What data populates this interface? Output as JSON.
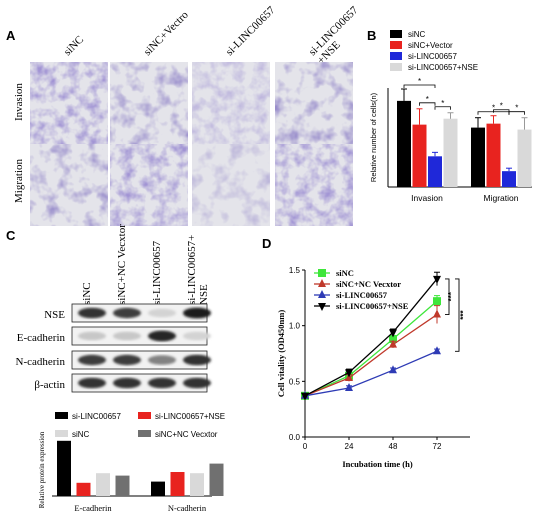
{
  "panel_labels": {
    "A": "A",
    "B": "B",
    "C": "C",
    "D": "D"
  },
  "panel_a": {
    "columns": [
      "siNC",
      "siNC+Vectro",
      "si-LINC00657",
      "si-LINC00657\n+NSE"
    ],
    "rows": [
      "Invasion",
      "Migration"
    ]
  },
  "panel_c": {
    "lanes": [
      "siNC",
      "siNC+NC Vecxtor",
      "si-LINC00657",
      "si-LINC00657+\nNSE"
    ],
    "blots": [
      "NSE",
      "E-cadherin",
      "N-cadherin",
      "β-actin"
    ],
    "band_intensity": {
      "NSE": [
        0.85,
        0.8,
        0.15,
        0.95
      ],
      "E-cadherin": [
        0.2,
        0.2,
        0.9,
        0.15
      ],
      "N-cadherin": [
        0.8,
        0.8,
        0.5,
        0.85
      ],
      "β-actin": [
        0.85,
        0.85,
        0.85,
        0.85
      ]
    }
  },
  "chart_data": [
    {
      "id": "B",
      "type": "bar",
      "categories": [
        "Invasion",
        "Migration"
      ],
      "ylabel": "Relative number of cells(n)",
      "ylim": [
        0,
        100
      ],
      "series": [
        {
          "name": "siNC",
          "values": [
            87,
            60
          ],
          "errors": [
            12,
            10
          ],
          "color": "#000000"
        },
        {
          "name": "siNC+Vector",
          "values": [
            63,
            64
          ],
          "errors": [
            16,
            8
          ],
          "color": "#e8231f"
        },
        {
          "name": "si-LINC00657",
          "values": [
            31,
            16
          ],
          "errors": [
            4,
            3
          ],
          "color": "#1f28d9"
        },
        {
          "name": "si-LINC00657+NSE",
          "values": [
            69,
            58
          ],
          "errors": [
            6,
            12
          ],
          "color": "#d9d9d9"
        }
      ],
      "significance_mark": "*",
      "legend_position": "top-right"
    },
    {
      "id": "C-bottom",
      "type": "bar",
      "categories": [
        "E-cadherin",
        "N-cadherin"
      ],
      "ylabel": "Relative protein expression",
      "series": [
        {
          "name": "si-LINC00657",
          "values": [
            2.3,
            0.6
          ],
          "color": "#000000"
        },
        {
          "name": "si-LINC00657+NSE",
          "values": [
            0.55,
            1.0
          ],
          "color": "#e8231f"
        },
        {
          "name": "siNC",
          "values": [
            0.95,
            0.95
          ],
          "color": "#d9d9d9"
        },
        {
          "name": "siNC+NC Vecxtor",
          "values": [
            0.85,
            1.35
          ],
          "color": "#707070"
        }
      ],
      "ylim": [
        0,
        2.5
      ],
      "legend_position": "top"
    },
    {
      "id": "D",
      "type": "line",
      "x": [
        0,
        24,
        48,
        72
      ],
      "xlabel": "Incubation time (h)",
      "ylabel": "Cell vitality (OD450nm)",
      "xticks": [
        "0",
        "24",
        "48",
        "72"
      ],
      "yticks": [
        "0.0",
        "0.5",
        "1.0",
        "1.5"
      ],
      "ylim": [
        0,
        1.5
      ],
      "series": [
        {
          "name": "siNC",
          "values": [
            0.37,
            0.55,
            0.88,
            1.22
          ],
          "errors": [
            0.02,
            0.03,
            0.03,
            0.05
          ],
          "color": "#3ee63a",
          "marker": "square"
        },
        {
          "name": "siNC+NC Vecxtor",
          "values": [
            0.37,
            0.53,
            0.83,
            1.1
          ],
          "errors": [
            0.02,
            0.03,
            0.03,
            0.08
          ],
          "color": "#c0392b",
          "marker": "triangle-up"
        },
        {
          "name": "si-LINC00657",
          "values": [
            0.37,
            0.44,
            0.6,
            0.77
          ],
          "errors": [
            0.02,
            0.02,
            0.02,
            0.02
          ],
          "color": "#2e3bb5",
          "marker": "triangle-up"
        },
        {
          "name": "si-LINC00657+NSE",
          "values": [
            0.37,
            0.58,
            0.94,
            1.42
          ],
          "errors": [
            0.02,
            0.03,
            0.03,
            0.06
          ],
          "color": "#000000",
          "marker": "triangle-down"
        }
      ],
      "significance_marks": [
        "***",
        "***"
      ],
      "legend_position": "top-left"
    }
  ]
}
